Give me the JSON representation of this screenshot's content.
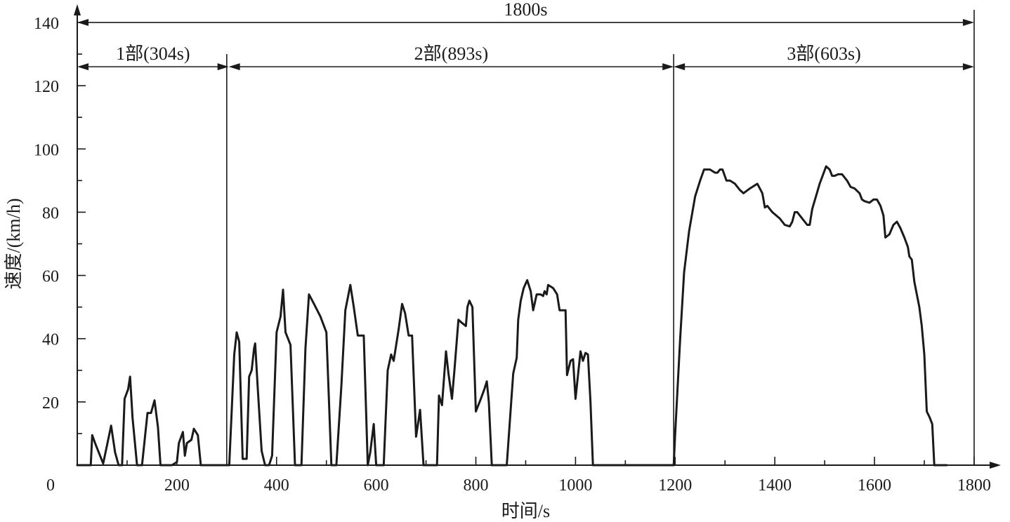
{
  "chart_data": {
    "type": "line",
    "title": "",
    "xlabel": "时间/s",
    "ylabel": "速度/(km/h)",
    "xlim": [
      0,
      1820
    ],
    "ylim": [
      0,
      140
    ],
    "origin_label": "0",
    "x_ticks": [
      200,
      400,
      600,
      800,
      1000,
      1200,
      1400,
      1600,
      1800
    ],
    "y_ticks": [
      20,
      40,
      60,
      80,
      100,
      120,
      140
    ],
    "grid": false,
    "segments": [
      {
        "label": "1800s",
        "start": 0,
        "end": 1800,
        "level": 140
      },
      {
        "label": "1部(304s)",
        "start": 0,
        "end": 304,
        "level": 126
      },
      {
        "label": "2部(893s)",
        "start": 304,
        "end": 1197,
        "level": 126
      },
      {
        "label": "3部(603s)",
        "start": 1197,
        "end": 1800,
        "level": 126
      }
    ],
    "dividers": [
      {
        "x": 300,
        "top": 130
      },
      {
        "x": 1197,
        "top": 130
      },
      {
        "x": 1800,
        "top": 144
      }
    ],
    "series": [
      {
        "points": [
          [
            0,
            0
          ],
          [
            27,
            0
          ],
          [
            30,
            9.5
          ],
          [
            37,
            6.5
          ],
          [
            52,
            0.5
          ],
          [
            68,
            12.5
          ],
          [
            76,
            4
          ],
          [
            83,
            0
          ],
          [
            90,
            0
          ],
          [
            95,
            21
          ],
          [
            102,
            24
          ],
          [
            106,
            28
          ],
          [
            111,
            15
          ],
          [
            120,
            0
          ],
          [
            130,
            0
          ],
          [
            141,
            16.5
          ],
          [
            148,
            16.5
          ],
          [
            155,
            20.5
          ],
          [
            162,
            12
          ],
          [
            167,
            0
          ],
          [
            190,
            0
          ],
          [
            200,
            1
          ],
          [
            204,
            7
          ],
          [
            212,
            10.5
          ],
          [
            216,
            3
          ],
          [
            220,
            7
          ],
          [
            229,
            8
          ],
          [
            234,
            11.5
          ],
          [
            242,
            9.5
          ],
          [
            248,
            0
          ],
          [
            300,
            0
          ],
          [
            305,
            0
          ],
          [
            315,
            35
          ],
          [
            320,
            42
          ],
          [
            325,
            39
          ],
          [
            332,
            2
          ],
          [
            340,
            2
          ],
          [
            345,
            28
          ],
          [
            350,
            30
          ],
          [
            355,
            37
          ],
          [
            357,
            38.5
          ],
          [
            362,
            25
          ],
          [
            370,
            4.5
          ],
          [
            377,
            0
          ],
          [
            385,
            0
          ],
          [
            391,
            3
          ],
          [
            400,
            42
          ],
          [
            408,
            47
          ],
          [
            413,
            55.5
          ],
          [
            418,
            42
          ],
          [
            423,
            40
          ],
          [
            428,
            38
          ],
          [
            437,
            0
          ],
          [
            450,
            0
          ],
          [
            458,
            37
          ],
          [
            465,
            54
          ],
          [
            475,
            51
          ],
          [
            488,
            47
          ],
          [
            500,
            42
          ],
          [
            510,
            0
          ],
          [
            520,
            0
          ],
          [
            530,
            25
          ],
          [
            538,
            49
          ],
          [
            548,
            57
          ],
          [
            555,
            50
          ],
          [
            563,
            41
          ],
          [
            575,
            41
          ],
          [
            583,
            0
          ],
          [
            588,
            4
          ],
          [
            595,
            13
          ],
          [
            600,
            0
          ],
          [
            615,
            0
          ],
          [
            623,
            30
          ],
          [
            630,
            35
          ],
          [
            635,
            33
          ],
          [
            645,
            43
          ],
          [
            652,
            51
          ],
          [
            658,
            48
          ],
          [
            665,
            41
          ],
          [
            672,
            41
          ],
          [
            680,
            9
          ],
          [
            688,
            17.5
          ],
          [
            695,
            0
          ],
          [
            722,
            0
          ],
          [
            726,
            22
          ],
          [
            732,
            19
          ],
          [
            740,
            36
          ],
          [
            745,
            29
          ],
          [
            752,
            21
          ],
          [
            757,
            30
          ],
          [
            765,
            46
          ],
          [
            772,
            45
          ],
          [
            780,
            44
          ],
          [
            783,
            50
          ],
          [
            787,
            52
          ],
          [
            793,
            50
          ],
          [
            800,
            17
          ],
          [
            810,
            21
          ],
          [
            817,
            24
          ],
          [
            822,
            26.5
          ],
          [
            826,
            20
          ],
          [
            832,
            0
          ],
          [
            862,
            0
          ],
          [
            867,
            11
          ],
          [
            875,
            29
          ],
          [
            882,
            34
          ],
          [
            885,
            46
          ],
          [
            890,
            52
          ],
          [
            896,
            56
          ],
          [
            903,
            58.5
          ],
          [
            910,
            55
          ],
          [
            915,
            49
          ],
          [
            922,
            54
          ],
          [
            930,
            54
          ],
          [
            935,
            53.5
          ],
          [
            938,
            55
          ],
          [
            942,
            54
          ],
          [
            945,
            57
          ],
          [
            955,
            56
          ],
          [
            963,
            54
          ],
          [
            968,
            49
          ],
          [
            980,
            49
          ],
          [
            983,
            28.5
          ],
          [
            990,
            33
          ],
          [
            995,
            33.5
          ],
          [
            1000,
            21
          ],
          [
            1010,
            36
          ],
          [
            1015,
            33
          ],
          [
            1020,
            35.5
          ],
          [
            1025,
            35
          ],
          [
            1030,
            20
          ],
          [
            1035,
            0
          ],
          [
            1197,
            0
          ]
        ]
      },
      {
        "points": [
          [
            1197,
            0
          ],
          [
            1200,
            10
          ],
          [
            1210,
            40
          ],
          [
            1218,
            61
          ],
          [
            1228,
            74
          ],
          [
            1240,
            85
          ],
          [
            1250,
            90
          ],
          [
            1258,
            93.5
          ],
          [
            1270,
            93.5
          ],
          [
            1280,
            92.5
          ],
          [
            1285,
            92.5
          ],
          [
            1290,
            93.5
          ],
          [
            1295,
            93.5
          ],
          [
            1303,
            90
          ],
          [
            1310,
            90
          ],
          [
            1320,
            89
          ],
          [
            1330,
            87
          ],
          [
            1337,
            86
          ],
          [
            1350,
            87.5
          ],
          [
            1365,
            89
          ],
          [
            1375,
            86
          ],
          [
            1380,
            81.5
          ],
          [
            1385,
            82
          ],
          [
            1395,
            80
          ],
          [
            1410,
            78
          ],
          [
            1420,
            76
          ],
          [
            1430,
            75.5
          ],
          [
            1435,
            77
          ],
          [
            1440,
            80
          ],
          [
            1445,
            80
          ],
          [
            1455,
            78
          ],
          [
            1465,
            76
          ],
          [
            1470,
            76
          ],
          [
            1475,
            81
          ],
          [
            1490,
            89
          ],
          [
            1503,
            94.5
          ],
          [
            1510,
            93.5
          ],
          [
            1515,
            91.5
          ],
          [
            1520,
            91.5
          ],
          [
            1527,
            92
          ],
          [
            1535,
            92
          ],
          [
            1545,
            90
          ],
          [
            1552,
            88
          ],
          [
            1560,
            87.5
          ],
          [
            1570,
            86
          ],
          [
            1575,
            84
          ],
          [
            1580,
            83.5
          ],
          [
            1590,
            83
          ],
          [
            1598,
            84
          ],
          [
            1605,
            84
          ],
          [
            1612,
            82
          ],
          [
            1618,
            79
          ],
          [
            1622,
            72
          ],
          [
            1630,
            73
          ],
          [
            1638,
            76
          ],
          [
            1645,
            77
          ],
          [
            1652,
            75
          ],
          [
            1660,
            72
          ],
          [
            1667,
            69
          ],
          [
            1670,
            66
          ],
          [
            1675,
            65
          ],
          [
            1680,
            58
          ],
          [
            1690,
            50
          ],
          [
            1695,
            44
          ],
          [
            1700,
            35
          ],
          [
            1705,
            17
          ],
          [
            1711,
            15
          ],
          [
            1716,
            13
          ],
          [
            1720,
            0
          ],
          [
            1745,
            0
          ]
        ]
      }
    ]
  }
}
